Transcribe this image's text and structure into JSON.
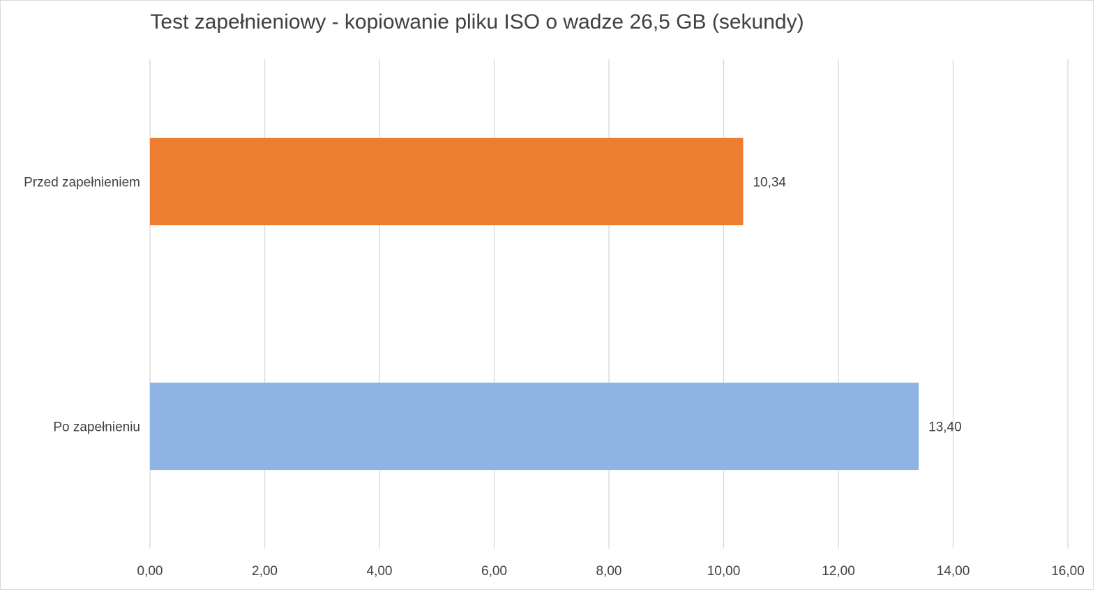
{
  "chart_data": {
    "type": "bar",
    "orientation": "horizontal",
    "title": "Test zapełnieniowy - kopiowanie pliku ISO o wadze 26,5 GB (sekundy)",
    "categories": [
      "Przed zapełnieniem",
      "Po zapełnieniu"
    ],
    "values": [
      10.34,
      13.4
    ],
    "value_labels": [
      "10,34",
      "13,40"
    ],
    "bar_colors": [
      "#ED7D31",
      "#8EB4E3"
    ],
    "xlim": [
      0,
      16
    ],
    "x_ticks": [
      0,
      2,
      4,
      6,
      8,
      10,
      12,
      14,
      16
    ],
    "x_tick_labels": [
      "0,00",
      "2,00",
      "4,00",
      "6,00",
      "8,00",
      "10,00",
      "12,00",
      "14,00",
      "16,00"
    ],
    "grid": "vertical",
    "legend": "none",
    "xlabel": "",
    "ylabel": ""
  }
}
